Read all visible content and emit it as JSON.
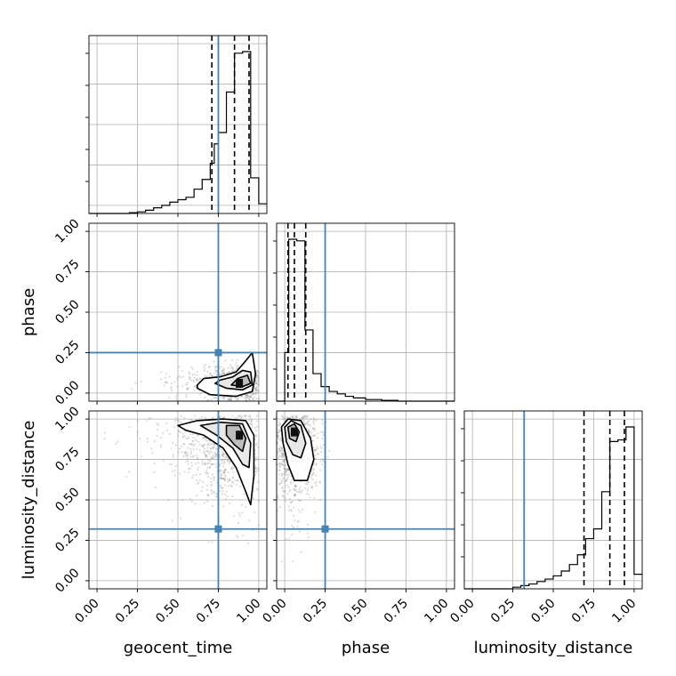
{
  "chart_data": {
    "type": "corner",
    "parameters": [
      "geocent_time",
      "phase",
      "luminosity_distance"
    ],
    "xlabels": [
      "geocent_time",
      "phase",
      "luminosity_distance"
    ],
    "ylabels": [
      "",
      "phase",
      "luminosity_distance"
    ],
    "axis_range": [
      -0.05,
      1.05
    ],
    "ticks": [
      "0.00",
      "0.25",
      "0.50",
      "0.75",
      "1.00"
    ],
    "grid": true,
    "colors": {
      "truth": "#4682b4",
      "hist": "#000000",
      "quantile": "#000000",
      "points": "#808080",
      "grid": "#b0b0b0"
    },
    "truths": {
      "geocent_time": 0.75,
      "phase": 0.25,
      "luminosity_distance": 0.32
    },
    "quantiles": {
      "geocent_time": [
        0.71,
        0.85,
        0.94
      ],
      "phase": [
        0.02,
        0.06,
        0.13
      ],
      "luminosity_distance": [
        0.69,
        0.85,
        0.94
      ]
    },
    "histograms": [
      {
        "parameter": "geocent_time",
        "bin_edges": [
          -0.05,
          0.0,
          0.05,
          0.1,
          0.15,
          0.2,
          0.25,
          0.3,
          0.35,
          0.4,
          0.45,
          0.5,
          0.55,
          0.6,
          0.65,
          0.7,
          0.725,
          0.75,
          0.8,
          0.85,
          0.875,
          0.9,
          0.95,
          1.0,
          1.05
        ],
        "counts": [
          0,
          0,
          0,
          0,
          0,
          0.005,
          0.01,
          0.02,
          0.035,
          0.05,
          0.07,
          0.085,
          0.1,
          0.15,
          0.21,
          0.31,
          0.43,
          0.5,
          0.75,
          0.99,
          0.99,
          1.0,
          0.22,
          0.06
        ]
      },
      {
        "parameter": "phase",
        "bin_edges": [
          -0.05,
          0.0,
          0.025,
          0.075,
          0.125,
          0.175,
          0.225,
          0.275,
          0.325,
          0.375,
          0.425,
          0.5,
          0.6,
          0.7,
          0.8,
          0.9,
          1.0,
          1.05
        ],
        "counts": [
          0,
          0.3,
          1.0,
          0.99,
          0.44,
          0.17,
          0.09,
          0.06,
          0.045,
          0.03,
          0.02,
          0.01,
          0.005,
          0,
          0,
          0,
          0
        ]
      },
      {
        "parameter": "luminosity_distance",
        "bin_edges": [
          -0.05,
          0.0,
          0.05,
          0.1,
          0.15,
          0.2,
          0.25,
          0.3,
          0.35,
          0.4,
          0.45,
          0.5,
          0.55,
          0.6,
          0.65,
          0.7,
          0.75,
          0.8,
          0.85,
          0.9,
          0.95,
          1.0,
          1.05
        ],
        "counts": [
          0,
          0,
          0,
          0,
          0,
          0,
          0.01,
          0.02,
          0.03,
          0.045,
          0.06,
          0.08,
          0.11,
          0.15,
          0.21,
          0.31,
          0.37,
          0.6,
          0.91,
          0.92,
          1.0,
          0.09
        ]
      }
    ],
    "scatter_2d": [
      {
        "x_param": "geocent_time",
        "y_param": "phase",
        "x_mean": 0.88,
        "x_sd": 0.09,
        "y_mean": 0.07,
        "y_sd": 0.05,
        "contours": [
          {
            "level": "outer",
            "points": [
              [
                0.62,
                0.03
              ],
              [
                0.7,
                -0.01
              ],
              [
                0.86,
                -0.02
              ],
              [
                0.96,
                0.01
              ],
              [
                0.98,
                0.12
              ],
              [
                0.96,
                0.25
              ],
              [
                0.92,
                0.2
              ],
              [
                0.86,
                0.13
              ],
              [
                0.76,
                0.1
              ],
              [
                0.66,
                0.09
              ],
              [
                0.62,
                0.05
              ]
            ]
          },
          {
            "level": "middle",
            "points": [
              [
                0.73,
                0.06
              ],
              [
                0.8,
                0.03
              ],
              [
                0.9,
                0.02
              ],
              [
                0.96,
                0.05
              ],
              [
                0.95,
                0.13
              ],
              [
                0.9,
                0.14
              ],
              [
                0.84,
                0.1
              ],
              [
                0.76,
                0.08
              ]
            ]
          },
          {
            "level": "inner",
            "points": [
              [
                0.83,
                0.05
              ],
              [
                0.9,
                0.04
              ],
              [
                0.95,
                0.06
              ],
              [
                0.93,
                0.11
              ],
              [
                0.87,
                0.09
              ]
            ]
          }
        ],
        "peak": [
          0.88,
          0.06
        ]
      },
      {
        "x_param": "geocent_time",
        "y_param": "luminosity_distance",
        "x_mean": 0.84,
        "x_sd": 0.12,
        "y_mean": 0.88,
        "y_sd": 0.13,
        "contours": [
          {
            "level": "outer",
            "points": [
              [
                0.5,
                0.96
              ],
              [
                0.62,
                0.99
              ],
              [
                0.78,
                1.0
              ],
              [
                0.92,
                0.99
              ],
              [
                0.97,
                0.9
              ],
              [
                0.97,
                0.65
              ],
              [
                0.95,
                0.47
              ],
              [
                0.92,
                0.55
              ],
              [
                0.86,
                0.7
              ],
              [
                0.78,
                0.82
              ],
              [
                0.66,
                0.9
              ],
              [
                0.55,
                0.93
              ]
            ]
          },
          {
            "level": "middle",
            "points": [
              [
                0.64,
                0.96
              ],
              [
                0.76,
                0.98
              ],
              [
                0.9,
                0.97
              ],
              [
                0.95,
                0.85
              ],
              [
                0.94,
                0.7
              ],
              [
                0.9,
                0.72
              ],
              [
                0.84,
                0.82
              ],
              [
                0.74,
                0.9
              ]
            ]
          },
          {
            "level": "inner",
            "points": [
              [
                0.8,
                0.96
              ],
              [
                0.88,
                0.96
              ],
              [
                0.92,
                0.88
              ],
              [
                0.9,
                0.8
              ],
              [
                0.85,
                0.84
              ],
              [
                0.8,
                0.9
              ]
            ]
          }
        ],
        "peak": [
          0.88,
          0.9
        ]
      },
      {
        "x_param": "phase",
        "y_param": "luminosity_distance",
        "x_mean": 0.07,
        "x_sd": 0.07,
        "y_mean": 0.86,
        "y_sd": 0.14,
        "contours": [
          {
            "level": "outer",
            "points": [
              [
                -0.02,
                0.95
              ],
              [
                0.02,
                1.0
              ],
              [
                0.1,
                0.99
              ],
              [
                0.16,
                0.88
              ],
              [
                0.18,
                0.75
              ],
              [
                0.14,
                0.62
              ],
              [
                0.06,
                0.62
              ],
              [
                0.02,
                0.72
              ],
              [
                -0.01,
                0.85
              ]
            ]
          },
          {
            "level": "middle",
            "points": [
              [
                0.0,
                0.95
              ],
              [
                0.04,
                0.99
              ],
              [
                0.1,
                0.96
              ],
              [
                0.13,
                0.85
              ],
              [
                0.1,
                0.76
              ],
              [
                0.05,
                0.78
              ],
              [
                0.01,
                0.86
              ]
            ]
          },
          {
            "level": "inner",
            "points": [
              [
                0.02,
                0.95
              ],
              [
                0.06,
                0.97
              ],
              [
                0.09,
                0.92
              ],
              [
                0.07,
                0.86
              ],
              [
                0.03,
                0.88
              ]
            ]
          }
        ],
        "peak": [
          0.06,
          0.92
        ]
      }
    ]
  }
}
